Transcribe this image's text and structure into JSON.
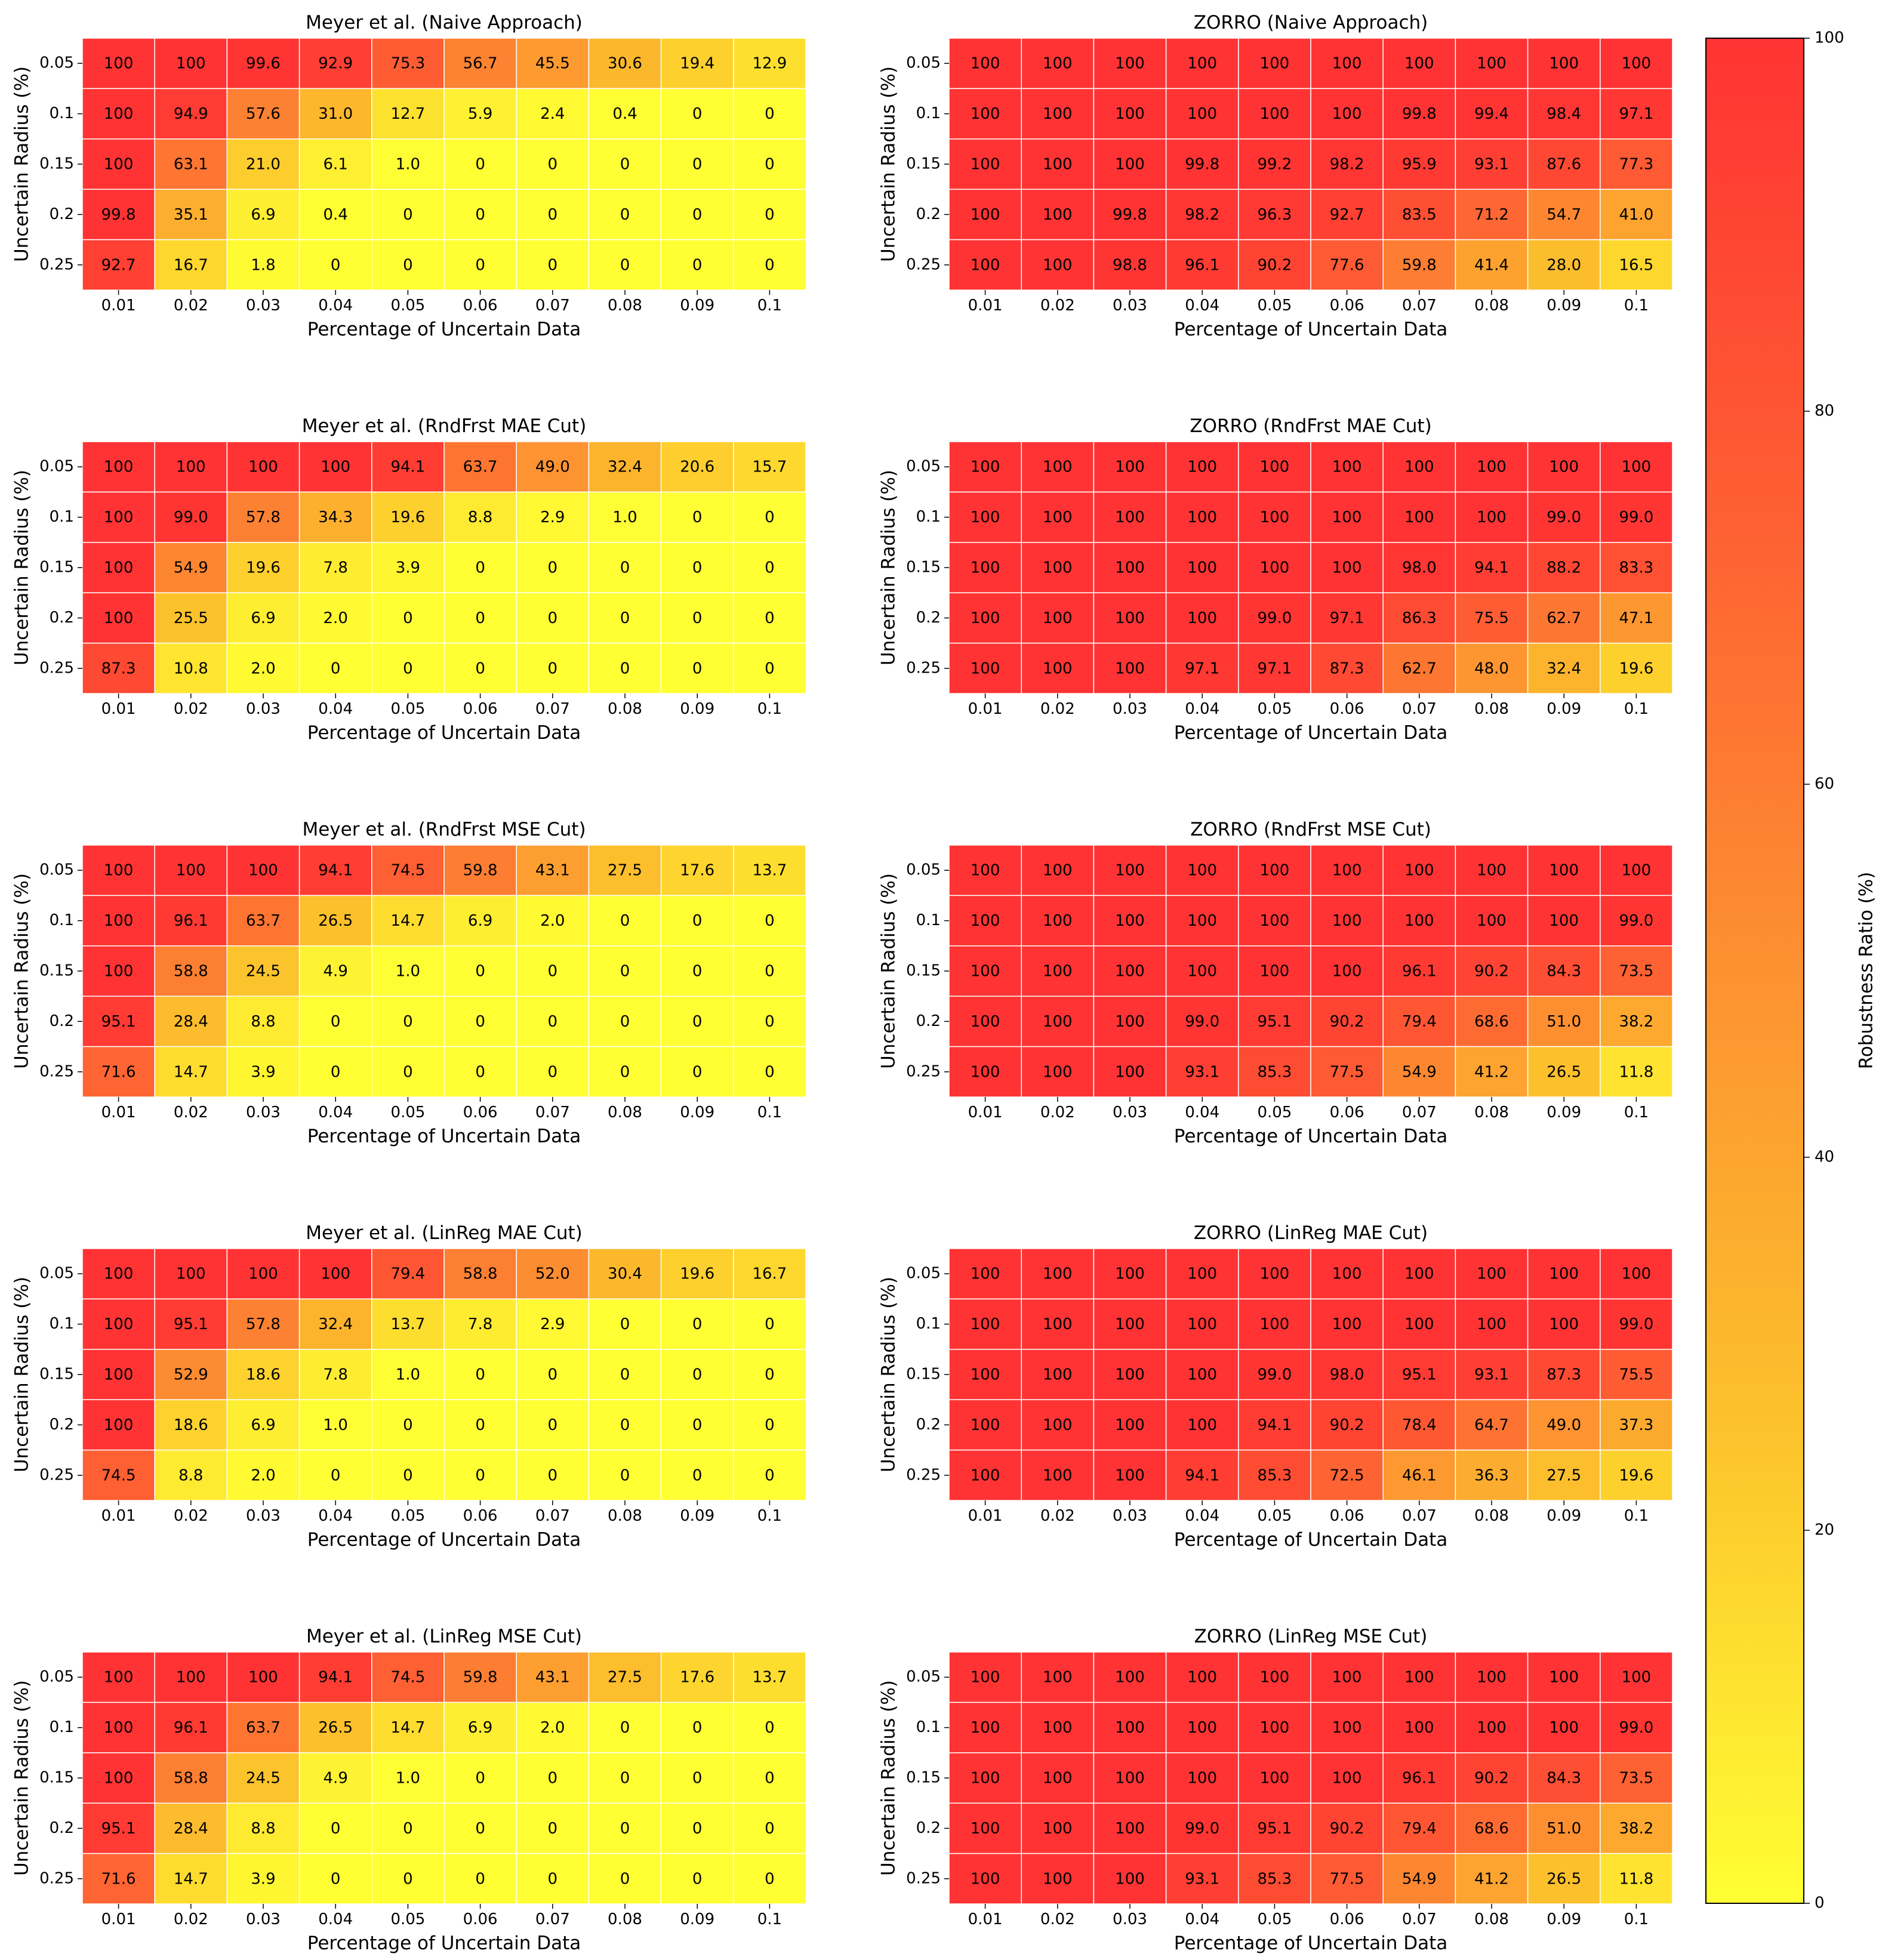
{
  "chart_data": {
    "type": "heatmap",
    "colorbar": {
      "label": "Robustness Ratio (%)",
      "ticks": [
        "0",
        "20",
        "40",
        "60",
        "80",
        "100"
      ],
      "range": [
        0,
        100
      ],
      "colormap": [
        "#ffff33",
        "#fcc32c",
        "#fd9131",
        "#fe5e33",
        "#ff3333"
      ]
    },
    "x_tick_labels": [
      "0.01",
      "0.02",
      "0.03",
      "0.04",
      "0.05",
      "0.06",
      "0.07",
      "0.08",
      "0.09",
      "0.1"
    ],
    "y_tick_labels": [
      "0.05",
      "0.1",
      "0.15",
      "0.2",
      "0.25"
    ],
    "xlabel": "Percentage of Uncertain Data",
    "ylabel": "Uncertain Radius (%)",
    "panels": [
      {
        "title": "Meyer et al. (Naive Approach)",
        "values": [
          [
            "100",
            "100",
            "99.6",
            "92.9",
            "75.3",
            "56.7",
            "45.5",
            "30.6",
            "19.4",
            "12.9"
          ],
          [
            "100",
            "94.9",
            "57.6",
            "31.0",
            "12.7",
            "5.9",
            "2.4",
            "0.4",
            "0",
            "0"
          ],
          [
            "100",
            "63.1",
            "21.0",
            "6.1",
            "1.0",
            "0",
            "0",
            "0",
            "0",
            "0"
          ],
          [
            "99.8",
            "35.1",
            "6.9",
            "0.4",
            "0",
            "0",
            "0",
            "0",
            "0",
            "0"
          ],
          [
            "92.7",
            "16.7",
            "1.8",
            "0",
            "0",
            "0",
            "0",
            "0",
            "0",
            "0"
          ]
        ]
      },
      {
        "title": "ZORRO (Naive Approach)",
        "values": [
          [
            "100",
            "100",
            "100",
            "100",
            "100",
            "100",
            "100",
            "100",
            "100",
            "100"
          ],
          [
            "100",
            "100",
            "100",
            "100",
            "100",
            "100",
            "99.8",
            "99.4",
            "98.4",
            "97.1"
          ],
          [
            "100",
            "100",
            "100",
            "99.8",
            "99.2",
            "98.2",
            "95.9",
            "93.1",
            "87.6",
            "77.3"
          ],
          [
            "100",
            "100",
            "99.8",
            "98.2",
            "96.3",
            "92.7",
            "83.5",
            "71.2",
            "54.7",
            "41.0"
          ],
          [
            "100",
            "100",
            "98.8",
            "96.1",
            "90.2",
            "77.6",
            "59.8",
            "41.4",
            "28.0",
            "16.5"
          ]
        ]
      },
      {
        "title": "Meyer et al. (RndFrst MAE Cut)",
        "values": [
          [
            "100",
            "100",
            "100",
            "100",
            "94.1",
            "63.7",
            "49.0",
            "32.4",
            "20.6",
            "15.7"
          ],
          [
            "100",
            "99.0",
            "57.8",
            "34.3",
            "19.6",
            "8.8",
            "2.9",
            "1.0",
            "0",
            "0"
          ],
          [
            "100",
            "54.9",
            "19.6",
            "7.8",
            "3.9",
            "0",
            "0",
            "0",
            "0",
            "0"
          ],
          [
            "100",
            "25.5",
            "6.9",
            "2.0",
            "0",
            "0",
            "0",
            "0",
            "0",
            "0"
          ],
          [
            "87.3",
            "10.8",
            "2.0",
            "0",
            "0",
            "0",
            "0",
            "0",
            "0",
            "0"
          ]
        ]
      },
      {
        "title": "ZORRO (RndFrst MAE Cut)",
        "values": [
          [
            "100",
            "100",
            "100",
            "100",
            "100",
            "100",
            "100",
            "100",
            "100",
            "100"
          ],
          [
            "100",
            "100",
            "100",
            "100",
            "100",
            "100",
            "100",
            "100",
            "99.0",
            "99.0"
          ],
          [
            "100",
            "100",
            "100",
            "100",
            "100",
            "100",
            "98.0",
            "94.1",
            "88.2",
            "83.3"
          ],
          [
            "100",
            "100",
            "100",
            "100",
            "99.0",
            "97.1",
            "86.3",
            "75.5",
            "62.7",
            "47.1"
          ],
          [
            "100",
            "100",
            "100",
            "97.1",
            "97.1",
            "87.3",
            "62.7",
            "48.0",
            "32.4",
            "19.6"
          ]
        ]
      },
      {
        "title": "Meyer et al. (RndFrst MSE Cut)",
        "values": [
          [
            "100",
            "100",
            "100",
            "94.1",
            "74.5",
            "59.8",
            "43.1",
            "27.5",
            "17.6",
            "13.7"
          ],
          [
            "100",
            "96.1",
            "63.7",
            "26.5",
            "14.7",
            "6.9",
            "2.0",
            "0",
            "0",
            "0"
          ],
          [
            "100",
            "58.8",
            "24.5",
            "4.9",
            "1.0",
            "0",
            "0",
            "0",
            "0",
            "0"
          ],
          [
            "95.1",
            "28.4",
            "8.8",
            "0",
            "0",
            "0",
            "0",
            "0",
            "0",
            "0"
          ],
          [
            "71.6",
            "14.7",
            "3.9",
            "0",
            "0",
            "0",
            "0",
            "0",
            "0",
            "0"
          ]
        ]
      },
      {
        "title": "ZORRO (RndFrst MSE Cut)",
        "values": [
          [
            "100",
            "100",
            "100",
            "100",
            "100",
            "100",
            "100",
            "100",
            "100",
            "100"
          ],
          [
            "100",
            "100",
            "100",
            "100",
            "100",
            "100",
            "100",
            "100",
            "100",
            "99.0"
          ],
          [
            "100",
            "100",
            "100",
            "100",
            "100",
            "100",
            "96.1",
            "90.2",
            "84.3",
            "73.5"
          ],
          [
            "100",
            "100",
            "100",
            "99.0",
            "95.1",
            "90.2",
            "79.4",
            "68.6",
            "51.0",
            "38.2"
          ],
          [
            "100",
            "100",
            "100",
            "93.1",
            "85.3",
            "77.5",
            "54.9",
            "41.2",
            "26.5",
            "11.8"
          ]
        ]
      },
      {
        "title": "Meyer et al. (LinReg MAE Cut)",
        "values": [
          [
            "100",
            "100",
            "100",
            "100",
            "79.4",
            "58.8",
            "52.0",
            "30.4",
            "19.6",
            "16.7"
          ],
          [
            "100",
            "95.1",
            "57.8",
            "32.4",
            "13.7",
            "7.8",
            "2.9",
            "0",
            "0",
            "0"
          ],
          [
            "100",
            "52.9",
            "18.6",
            "7.8",
            "1.0",
            "0",
            "0",
            "0",
            "0",
            "0"
          ],
          [
            "100",
            "18.6",
            "6.9",
            "1.0",
            "0",
            "0",
            "0",
            "0",
            "0",
            "0"
          ],
          [
            "74.5",
            "8.8",
            "2.0",
            "0",
            "0",
            "0",
            "0",
            "0",
            "0",
            "0"
          ]
        ]
      },
      {
        "title": "ZORRO (LinReg MAE Cut)",
        "values": [
          [
            "100",
            "100",
            "100",
            "100",
            "100",
            "100",
            "100",
            "100",
            "100",
            "100"
          ],
          [
            "100",
            "100",
            "100",
            "100",
            "100",
            "100",
            "100",
            "100",
            "100",
            "99.0"
          ],
          [
            "100",
            "100",
            "100",
            "100",
            "99.0",
            "98.0",
            "95.1",
            "93.1",
            "87.3",
            "75.5"
          ],
          [
            "100",
            "100",
            "100",
            "100",
            "94.1",
            "90.2",
            "78.4",
            "64.7",
            "49.0",
            "37.3"
          ],
          [
            "100",
            "100",
            "100",
            "94.1",
            "85.3",
            "72.5",
            "46.1",
            "36.3",
            "27.5",
            "19.6"
          ]
        ]
      },
      {
        "title": "Meyer et al. (LinReg MSE Cut)",
        "values": [
          [
            "100",
            "100",
            "100",
            "94.1",
            "74.5",
            "59.8",
            "43.1",
            "27.5",
            "17.6",
            "13.7"
          ],
          [
            "100",
            "96.1",
            "63.7",
            "26.5",
            "14.7",
            "6.9",
            "2.0",
            "0",
            "0",
            "0"
          ],
          [
            "100",
            "58.8",
            "24.5",
            "4.9",
            "1.0",
            "0",
            "0",
            "0",
            "0",
            "0"
          ],
          [
            "95.1",
            "28.4",
            "8.8",
            "0",
            "0",
            "0",
            "0",
            "0",
            "0",
            "0"
          ],
          [
            "71.6",
            "14.7",
            "3.9",
            "0",
            "0",
            "0",
            "0",
            "0",
            "0",
            "0"
          ]
        ]
      },
      {
        "title": "ZORRO (LinReg MSE Cut)",
        "values": [
          [
            "100",
            "100",
            "100",
            "100",
            "100",
            "100",
            "100",
            "100",
            "100",
            "100"
          ],
          [
            "100",
            "100",
            "100",
            "100",
            "100",
            "100",
            "100",
            "100",
            "100",
            "99.0"
          ],
          [
            "100",
            "100",
            "100",
            "100",
            "100",
            "100",
            "96.1",
            "90.2",
            "84.3",
            "73.5"
          ],
          [
            "100",
            "100",
            "100",
            "99.0",
            "95.1",
            "90.2",
            "79.4",
            "68.6",
            "51.0",
            "38.2"
          ],
          [
            "100",
            "100",
            "100",
            "93.1",
            "85.3",
            "77.5",
            "54.9",
            "41.2",
            "26.5",
            "11.8"
          ]
        ]
      }
    ]
  }
}
